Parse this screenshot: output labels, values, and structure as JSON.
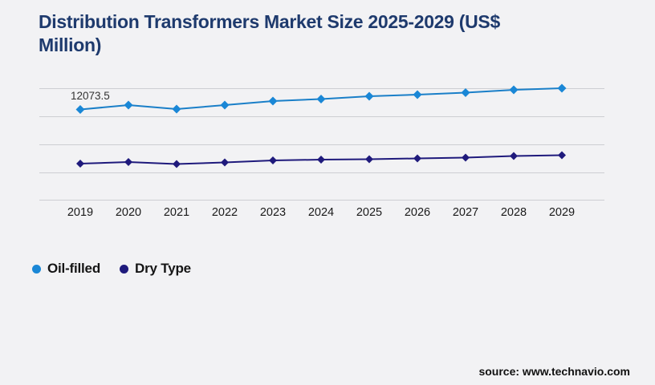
{
  "header": {
    "title": "Distribution Transformers Market Size 2025-2029 (US$ Million)",
    "title_lines": [
      "Distribution Transformers Market Size 2025-2029 (US$",
      "Million)"
    ]
  },
  "chart_data": {
    "type": "line",
    "title": "Distribution Transformers Market Size 2025-2029 (US$ Million)",
    "categories": [
      "2019",
      "2020",
      "2021",
      "2022",
      "2023",
      "2024",
      "2025",
      "2026",
      "2027",
      "2028",
      "2029"
    ],
    "series": [
      {
        "name": "Oil-filled",
        "color": "#1a87d6",
        "line_color": "#1a7fc8",
        "marker": "diamond",
        "values": [
          12073.5,
          12660,
          12130,
          12660,
          13200,
          13470,
          13840,
          14060,
          14330,
          14700,
          14920
        ]
      },
      {
        "name": "Dry Type",
        "color": "#1f1a7c",
        "line_color": "#1f1a7c",
        "marker": "diamond",
        "values": [
          4830,
          5040,
          4780,
          4990,
          5260,
          5370,
          5420,
          5530,
          5630,
          5850,
          5960
        ]
      }
    ],
    "annotations": [
      {
        "series": "Oil-filled",
        "category": "2019",
        "text": "12073.5"
      }
    ],
    "xlabel": "",
    "ylabel": "",
    "ylim": [
      0,
      16500
    ],
    "y_axis_labels_visible": false,
    "gridlines": "horizontal",
    "gridline_count": 5,
    "legend_position": "bottom-left"
  },
  "legend": {
    "items": [
      {
        "label": "Oil-filled",
        "color": "#1a87d6"
      },
      {
        "label": "Dry Type",
        "color": "#1f1a7c"
      }
    ]
  },
  "footer": {
    "source": "source: www.technavio.com"
  },
  "colors": {
    "background": "#f2f2f4",
    "gridline": "#cdced2",
    "title": "#1e3a6d",
    "axis_text": "#1a1a1a",
    "annotation_text": "#333333"
  }
}
